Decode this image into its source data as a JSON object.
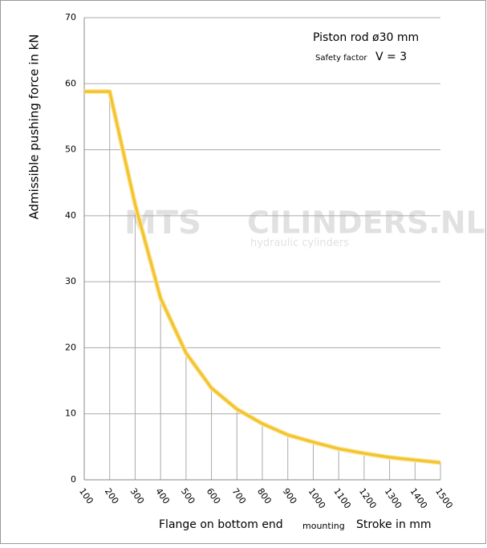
{
  "chart_data": {
    "type": "line",
    "title": "Piston rod ø30 mm",
    "subtitle_label": "Safety factor",
    "subtitle_value": "V = 3",
    "y_label": "Admissible pushing  force in kN",
    "x_label": "Flange on bottom end",
    "x_label_small": "mounting",
    "x_label_right": "Stroke in mm",
    "watermark": [
      "MTS",
      "CILINDERS.NL",
      "hydraulic  cylinders"
    ],
    "x": [
      100,
      200,
      300,
      400,
      500,
      600,
      700,
      800,
      900,
      1000,
      1100,
      1200,
      1300,
      1400,
      1500
    ],
    "series": [
      {
        "color": "#f4c430",
        "values": [
          58.8,
          58.8,
          41.7,
          27.5,
          19.2,
          13.9,
          10.7,
          8.5,
          6.8,
          5.7,
          4.7,
          4.0,
          3.4,
          3.0,
          2.6
        ]
      }
    ],
    "xlim": [
      100,
      1500
    ],
    "xticks": [
      100,
      200,
      300,
      400,
      500,
      600,
      700,
      800,
      900,
      1000,
      1100,
      1200,
      1300,
      1400,
      1500
    ],
    "ylim": [
      0,
      70
    ],
    "yticks": [
      0,
      10,
      20,
      30,
      40,
      50,
      60,
      70
    ],
    "grid": true
  }
}
